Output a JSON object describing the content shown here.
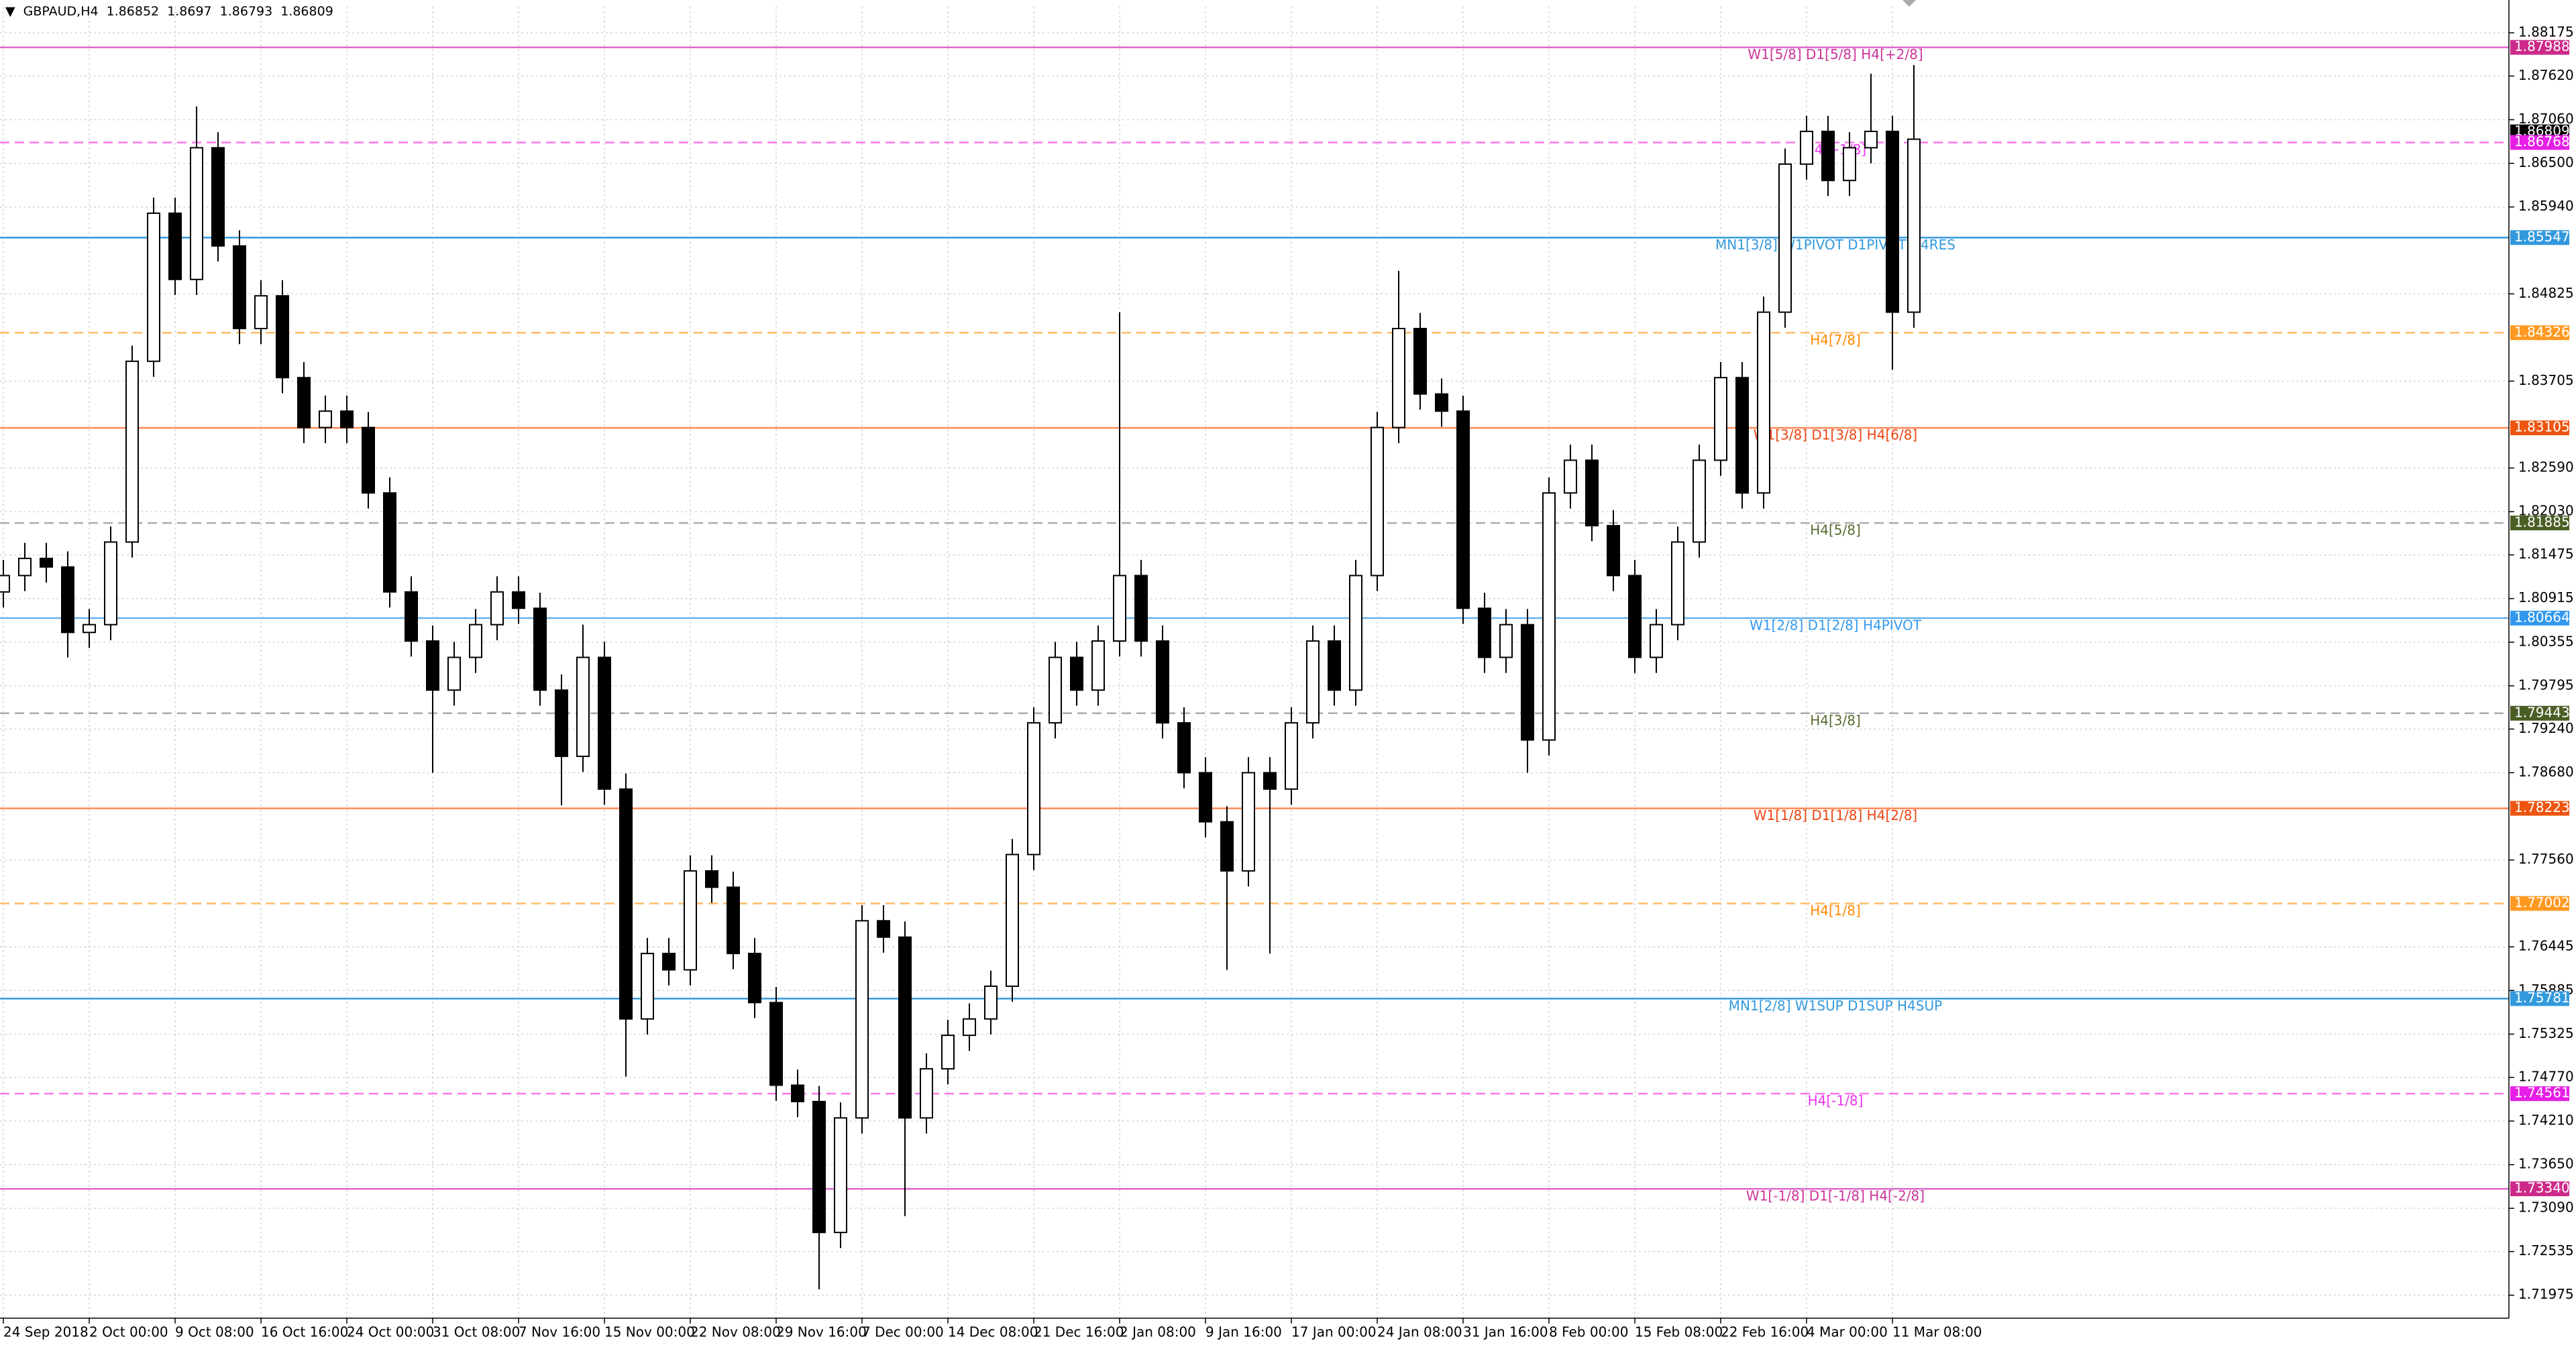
{
  "chart_data": {
    "type": "candlestick",
    "symbol": "GBPAUD,H4",
    "last_bar": {
      "open": 1.86852,
      "high": 1.8697,
      "low": 1.86793,
      "close": 1.86809
    },
    "categories": [
      "24 Sep 2018",
      null,
      null,
      null,
      "2 Oct 00:00",
      null,
      null,
      null,
      "9 Oct 08:00",
      null,
      null,
      null,
      "16 Oct 16:00",
      null,
      null,
      null,
      "24 Oct 00:00",
      null,
      null,
      null,
      "31 Oct 08:00",
      null,
      null,
      null,
      "7 Nov 16:00",
      null,
      null,
      null,
      "15 Nov 00:00",
      null,
      null,
      null,
      "22 Nov 08:00",
      null,
      null,
      null,
      "29 Nov 16:00",
      null,
      null,
      null,
      "7 Dec 00:00",
      null,
      null,
      null,
      "14 Dec 08:00",
      null,
      null,
      null,
      "21 Dec 16:00",
      null,
      null,
      null,
      "2 Jan 08:00",
      null,
      null,
      null,
      "9 Jan 16:00",
      null,
      null,
      null,
      "17 Jan 00:00",
      null,
      null,
      null,
      "24 Jan 08:00",
      null,
      null,
      null,
      "31 Jan 16:00",
      null,
      null,
      null,
      "8 Feb 00:00",
      null,
      null,
      null,
      "15 Feb 08:00",
      null,
      null,
      null,
      "22 Feb 16:00",
      null,
      null,
      null,
      "4 Mar 00:00",
      null,
      null,
      null,
      "11 Mar 08:00",
      null
    ],
    "open": [
      1.81,
      1.8121,
      1.8143,
      1.8132,
      1.8048,
      1.8058,
      1.8164,
      1.8396,
      1.8586,
      1.8501,
      1.867,
      1.8544,
      1.8438,
      1.848,
      1.8375,
      1.8311,
      1.8332,
      1.8311,
      1.8227,
      1.81,
      1.8037,
      1.7974,
      1.8016,
      1.8058,
      1.81,
      1.8079,
      1.7974,
      1.7889,
      1.8016,
      1.7847,
      1.7552,
      1.7636,
      1.7615,
      1.7742,
      1.7721,
      1.7636,
      1.7573,
      1.7467,
      1.7446,
      1.7278,
      1.7425,
      1.7678,
      1.7657,
      1.7425,
      1.7488,
      1.7531,
      1.7552,
      1.7594,
      1.7763,
      1.7932,
      1.8016,
      1.7974,
      1.8037,
      1.8121,
      1.8037,
      1.7932,
      1.7868,
      1.7805,
      1.7742,
      1.7868,
      1.7847,
      1.7932,
      1.8037,
      1.7974,
      1.8121,
      1.8311,
      1.8438,
      1.8354,
      1.8332,
      1.8079,
      1.8016,
      1.8058,
      1.791,
      1.8227,
      1.8269,
      1.8185,
      1.8121,
      1.8016,
      1.8058,
      1.8164,
      1.8269,
      1.8375,
      1.8227,
      1.8459,
      1.8649,
      1.8691,
      1.8628,
      1.867,
      1.8691,
      1.8459
    ],
    "high": [
      1.8141,
      1.8163,
      1.8163,
      1.8152,
      1.8078,
      1.8184,
      1.8416,
      1.8606,
      1.8606,
      1.8723,
      1.869,
      1.8564,
      1.85,
      1.85,
      1.8395,
      1.8352,
      1.8352,
      1.8331,
      1.8247,
      1.812,
      1.8057,
      1.8036,
      1.8078,
      1.812,
      1.812,
      1.8099,
      1.7994,
      1.8058,
      1.8036,
      1.7867,
      1.7656,
      1.7656,
      1.7762,
      1.7762,
      1.7741,
      1.7656,
      1.7593,
      1.7487,
      1.7466,
      1.7445,
      1.7698,
      1.7698,
      1.7677,
      1.7508,
      1.7551,
      1.7572,
      1.7614,
      1.7783,
      1.7952,
      1.8036,
      1.8036,
      1.8057,
      1.8459,
      1.8141,
      1.8057,
      1.7952,
      1.7888,
      1.7825,
      1.7888,
      1.7888,
      1.7952,
      1.8057,
      1.8057,
      1.8141,
      1.8331,
      1.8512,
      1.8458,
      1.8374,
      1.8352,
      1.8099,
      1.8078,
      1.8078,
      1.8247,
      1.8289,
      1.8289,
      1.8205,
      1.8141,
      1.8078,
      1.8184,
      1.8289,
      1.8395,
      1.8395,
      1.8479,
      1.8669,
      1.8711,
      1.8711,
      1.869,
      1.8765,
      1.8711,
      1.8776
    ],
    "low": [
      1.808,
      1.8101,
      1.8112,
      1.8016,
      1.8028,
      1.8038,
      1.8144,
      1.8376,
      1.8481,
      1.8481,
      1.8524,
      1.8418,
      1.8418,
      1.8355,
      1.8291,
      1.8291,
      1.8291,
      1.8207,
      1.808,
      1.8017,
      1.7868,
      1.7954,
      1.7996,
      1.8038,
      1.8059,
      1.7954,
      1.7826,
      1.7869,
      1.7827,
      1.7478,
      1.7532,
      1.7595,
      1.7595,
      1.7701,
      1.7616,
      1.7553,
      1.7447,
      1.7426,
      1.7205,
      1.7258,
      1.7405,
      1.7637,
      1.7299,
      1.7405,
      1.7468,
      1.7511,
      1.7532,
      1.7574,
      1.7743,
      1.7912,
      1.7954,
      1.7954,
      1.8017,
      1.8017,
      1.7912,
      1.7848,
      1.7785,
      1.7615,
      1.7722,
      1.7636,
      1.7827,
      1.7912,
      1.7954,
      1.7954,
      1.8101,
      1.8291,
      1.8334,
      1.8312,
      1.8059,
      1.7996,
      1.7996,
      1.7868,
      1.789,
      1.8207,
      1.8165,
      1.8101,
      1.7996,
      1.7996,
      1.8038,
      1.8144,
      1.8249,
      1.8207,
      1.8207,
      1.8439,
      1.8629,
      1.8608,
      1.8608,
      1.865,
      1.8385,
      1.8439
    ],
    "close": [
      1.8121,
      1.8143,
      1.8132,
      1.8048,
      1.8058,
      1.8164,
      1.8396,
      1.8586,
      1.8501,
      1.867,
      1.8544,
      1.8438,
      1.848,
      1.8375,
      1.8311,
      1.8332,
      1.8311,
      1.8227,
      1.81,
      1.8037,
      1.7974,
      1.8016,
      1.8058,
      1.81,
      1.8079,
      1.7974,
      1.7889,
      1.8016,
      1.7847,
      1.7552,
      1.7636,
      1.7615,
      1.7742,
      1.7721,
      1.7636,
      1.7573,
      1.7467,
      1.7446,
      1.7278,
      1.7425,
      1.7678,
      1.7657,
      1.7425,
      1.7488,
      1.7531,
      1.7552,
      1.7594,
      1.7763,
      1.7932,
      1.8016,
      1.7974,
      1.8037,
      1.8121,
      1.8037,
      1.7932,
      1.7868,
      1.7805,
      1.7742,
      1.7868,
      1.7847,
      1.7932,
      1.8037,
      1.7974,
      1.8121,
      1.8311,
      1.8438,
      1.8354,
      1.8332,
      1.8079,
      1.8016,
      1.8058,
      1.791,
      1.8227,
      1.8269,
      1.8185,
      1.8121,
      1.8016,
      1.8058,
      1.8164,
      1.8269,
      1.8375,
      1.8227,
      1.8459,
      1.8649,
      1.8691,
      1.8628,
      1.867,
      1.8691,
      1.8459,
      1.8681
    ],
    "ylim": [
      1.7168,
      1.8851
    ],
    "yticks": [
      1.88175,
      {
        "value": 1.8762,
        "label": "1.87620"
      },
      {
        "value": 1.8706,
        "label": "1.87060"
      },
      {
        "value": 1.865,
        "label": "1.86500"
      },
      {
        "value": 1.8594,
        "label": "1.85940"
      },
      1.84825,
      1.83705,
      {
        "value": 1.8259,
        "label": "1.82590"
      },
      {
        "value": 1.8203,
        "label": "1.82030"
      },
      1.81475,
      1.80915,
      1.80355,
      1.79795,
      {
        "value": 1.7924,
        "label": "1.79240"
      },
      {
        "value": 1.7868,
        "label": "1.78680"
      },
      {
        "value": 1.7756,
        "label": "1.77560"
      },
      1.76445,
      1.75885,
      1.75325,
      {
        "value": 1.7477,
        "label": "1.74770"
      },
      {
        "value": 1.7421,
        "label": "1.74210"
      },
      {
        "value": 1.7365,
        "label": "1.73650"
      },
      {
        "value": 1.7309,
        "label": "1.73090"
      },
      1.72535,
      1.71975
    ],
    "grid": true,
    "up_color": "#ffffff",
    "down_color": "#000000",
    "outline_color": "#000000",
    "levels": [
      {
        "label": "W1[5/8] D1[5/8] H4[+2/8]",
        "value": 1.87988,
        "color": "#dd66cc",
        "text_color": "#cc3399",
        "tag_color": "#cc2a8a",
        "style": "solid"
      },
      {
        "label": "H4[+1/8]",
        "value": 1.86768,
        "color": "#ff77ee",
        "text_color": "#ee33ee",
        "tag_color": "#e61ee6",
        "style": "dashed"
      },
      {
        "label": "MN1[3/8] W1PIVOT D1PIVOT H4RES",
        "value": 1.85547,
        "color": "#3399dd",
        "text_color": "#3399dd",
        "tag_color": "#3399dd",
        "style": "solid"
      },
      {
        "label": "H4[7/8]",
        "value": 1.84326,
        "color": "#ffbb66",
        "text_color": "#ff8800",
        "tag_color": "#ff9922",
        "style": "dashed"
      },
      {
        "label": "W1[3/8] D1[3/8] H4[6/8]",
        "value": 1.83105,
        "color": "#ff8855",
        "text_color": "#ee4411",
        "tag_color": "#ee5511",
        "style": "solid"
      },
      {
        "label": "H4[5/8]",
        "value": 1.81885,
        "color": "#aaaaaa",
        "text_color": "#556b2f",
        "tag_color": "#4b5e25",
        "style": "dashed"
      },
      {
        "label": "W1[2/8] D1[2/8] H4PIVOT",
        "value": 1.80664,
        "color": "#66b3ee",
        "text_color": "#3399ee",
        "tag_color": "#3399ee",
        "style": "solid"
      },
      {
        "label": "H4[3/8]",
        "value": 1.79443,
        "color": "#aaaaaa",
        "text_color": "#556b2f",
        "tag_color": "#4b5e25",
        "style": "dashed"
      },
      {
        "label": "W1[1/8] D1[1/8] H4[2/8]",
        "value": 1.78223,
        "color": "#ff8855",
        "text_color": "#ee4411",
        "tag_color": "#ee5511",
        "style": "solid"
      },
      {
        "label": "H4[1/8]",
        "value": 1.77002,
        "color": "#ffbb66",
        "text_color": "#ff8800",
        "tag_color": "#ff9922",
        "style": "dashed"
      },
      {
        "label": "MN1[2/8] W1SUP D1SUP H4SUP",
        "value": 1.75781,
        "color": "#3399dd",
        "text_color": "#3399dd",
        "tag_color": "#3399dd",
        "style": "solid"
      },
      {
        "label": "H4[-1/8]",
        "value": 1.74561,
        "color": "#ff77ee",
        "text_color": "#ee33ee",
        "tag_color": "#e61ee6",
        "style": "dashed"
      },
      {
        "label": "W1[-1/8] D1[-1/8] H4[-2/8]",
        "value": 1.7334,
        "value_label": "1.73340",
        "color": "#dd66cc",
        "text_color": "#cc3399",
        "tag_color": "#cc2a8a",
        "style": "solid"
      }
    ]
  }
}
